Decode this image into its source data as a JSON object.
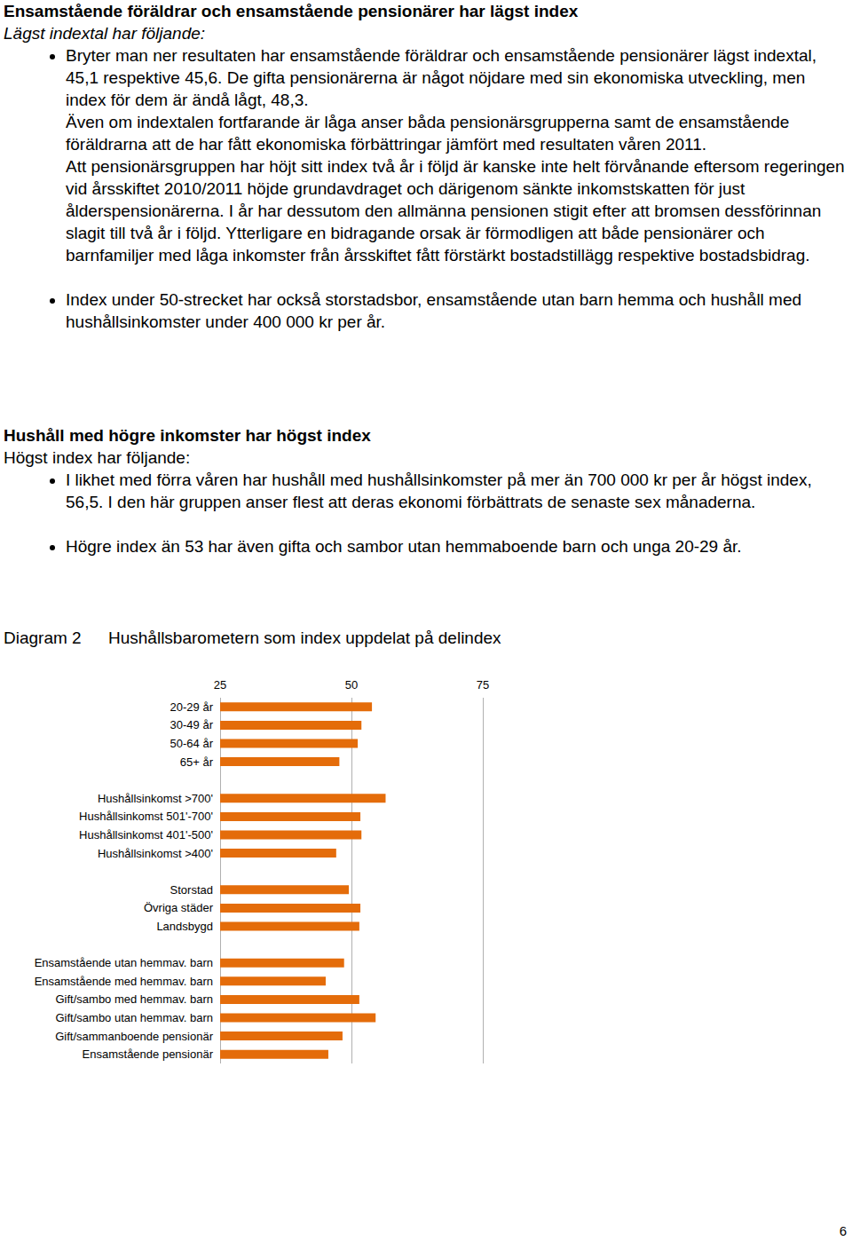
{
  "document": {
    "sections": [
      {
        "heading": "Ensamstående föräldrar och ensamstående pensionärer har lägst index",
        "subheading": "Lägst indextal har följande:",
        "bullets": [
          [
            "Bryter man ner resultaten har ensamstående föräldrar och ensamstående pensionärer lägst indextal, 45,1 respektive 45,6. De gifta pensionärerna är något nöjdare med sin ekonomiska utveckling, men index för dem är ändå lågt, 48,3.",
            "Även om indextalen fortfarande är låga anser båda pensionärsgrupperna samt de ensamstående föräldrarna att de har fått ekonomiska förbättringar jämfört med resultaten våren 2011.",
            "Att pensionärsgruppen har höjt sitt index två år i följd är kanske inte helt förvånande eftersom regeringen vid årsskiftet 2010/2011 höjde grundavdraget och därigenom sänkte inkomstskatten för just ålderspensionärerna. I år har dessutom den allmänna pensionen stigit efter att bromsen dessförinnan slagit till två år i följd. Ytterligare en bidragande orsak är förmodligen att både pensionärer och barnfamiljer med låga inkomster från årsskiftet fått förstärkt bostadstillägg respektive bostadsbidrag."
          ],
          [
            "Index under 50-strecket har också storstadsbor, ensamstående utan barn hemma och hushåll med hushållsinkomster under 400 000 kr per år."
          ]
        ]
      },
      {
        "heading": "Hushåll med högre inkomster har högst index",
        "subheading": "Högst index har följande:",
        "bullets": [
          [
            "I likhet med förra våren har hushåll med hushållsinkomster på mer än 700 000 kr per år högst index, 56,5. I den här gruppen anser flest att deras ekonomi förbättrats de senaste sex månaderna."
          ],
          [
            "Högre index än 53 har även gifta och sambor utan hemmaboende barn och unga 20-29 år."
          ]
        ]
      }
    ],
    "caption": {
      "number": "Diagram 2",
      "text": "Hushållsbarometern som index uppdelat på delindex"
    },
    "page_number": "6"
  },
  "chart_data": {
    "type": "bar",
    "orientation": "horizontal",
    "categories": [
      "20-29 år",
      "30-49 år",
      "50-64 år",
      "65+ år",
      null,
      "Hushållsinkomst >700'",
      "Hushållsinkomst 501'-700'",
      "Hushållsinkomst 401'-500'",
      "Hushållsinkomst >400'",
      null,
      "Storstad",
      "Övriga städer",
      "Landsbygd",
      null,
      "Ensamstående utan hemmav. barn",
      "Ensamstående med hemmav. barn",
      "Gift/sambo med hemmav. barn",
      "Gift/sambo utan hemmav. barn",
      "Gift/sammanboende pensionär",
      "Ensamstående pensionär"
    ],
    "values": [
      53.9,
      51.9,
      51.2,
      47.7,
      null,
      56.5,
      51.7,
      51.9,
      47.1,
      null,
      49.5,
      51.7,
      51.5,
      null,
      48.6,
      45.1,
      51.5,
      54.6,
      48.3,
      45.6
    ],
    "color": "#e46c0a",
    "xlim": [
      25,
      75
    ],
    "xticks": [
      25,
      50,
      75
    ],
    "grid": true
  }
}
